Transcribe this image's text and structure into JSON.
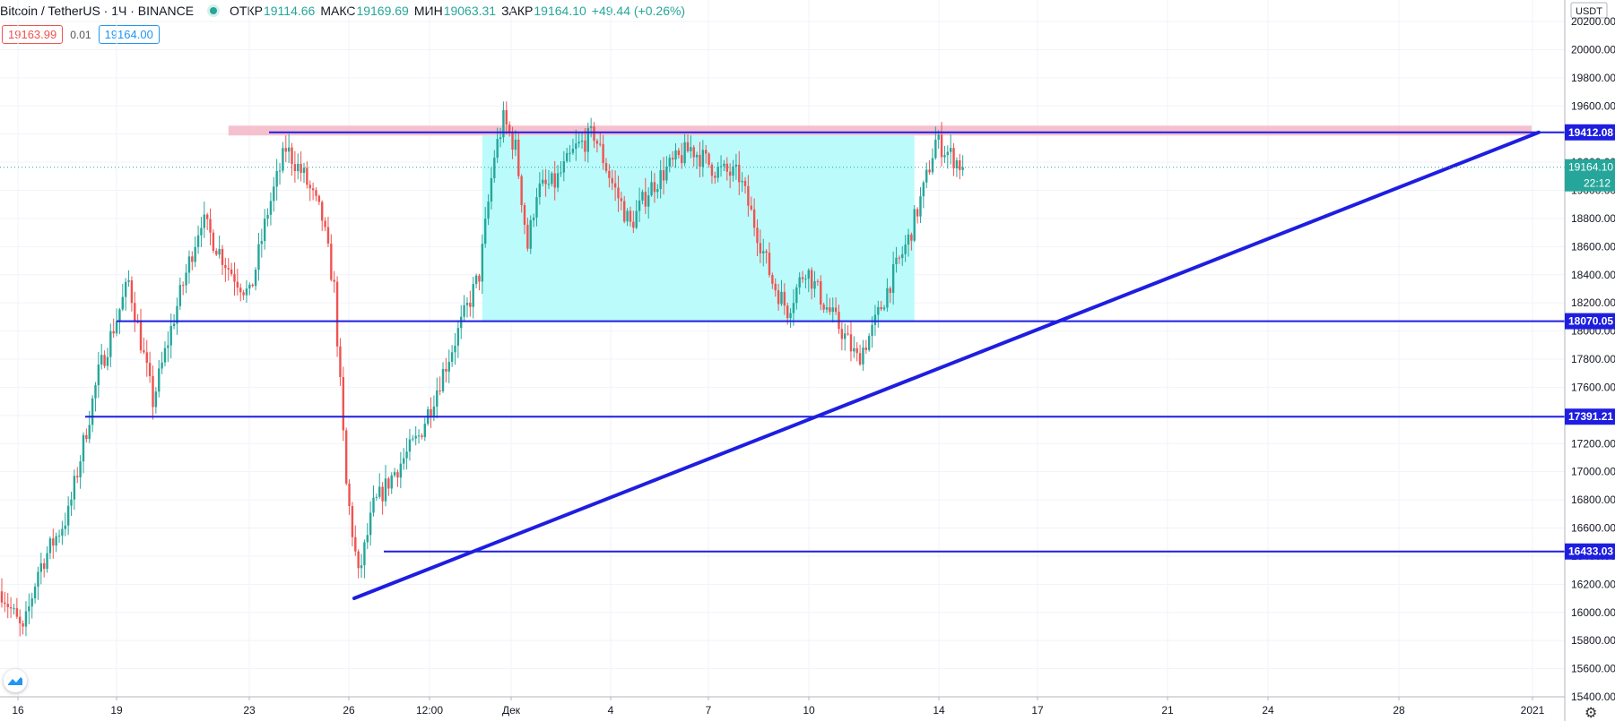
{
  "header": {
    "symbol": "Bitcoin / TetherUS · 1Ч · BINANCE",
    "open_label": "ОТКР",
    "open_value": "19114.66",
    "high_label": "МАКС",
    "high_value": "19169.69",
    "low_label": "МИН",
    "low_value": "19063.31",
    "close_label": "ЗАКР",
    "close_value": "19164.10",
    "change": "+49.44 (+0.26%)"
  },
  "quote": {
    "bid": "19163.99",
    "spread": "0.01",
    "ask": "19164.00"
  },
  "currency_label": "USDT",
  "colors": {
    "up": "#26a69a",
    "down": "#ef5350",
    "line": "#1e1ee0",
    "zone": "#b5fbfb",
    "resistance": "#f4b6c6"
  },
  "chart_data": {
    "type": "candlestick",
    "pair": "BTC/USDT",
    "timeframe": "1Ч",
    "ylim": [
      15400,
      20200
    ],
    "y_ticks": [
      20200,
      20000,
      19800,
      19600,
      19400,
      19200,
      19000,
      18800,
      18600,
      18400,
      18200,
      18000,
      17800,
      17600,
      17400,
      17200,
      17000,
      16800,
      16600,
      16400,
      16200,
      16000,
      15800,
      15600,
      15400
    ],
    "x_ticks": [
      "16",
      "19",
      "23",
      "26",
      "12:00",
      "Дек",
      "4",
      "7",
      "10",
      "14",
      "17",
      "21",
      "24",
      "28",
      "2021"
    ],
    "current_price": {
      "value": "19164.10",
      "countdown": "22:12"
    },
    "horizontal_levels": [
      {
        "value": 19412.08,
        "label": "19412.08"
      },
      {
        "value": 18070.05,
        "label": "18070.05"
      },
      {
        "value": 17391.21,
        "label": "17391.21"
      },
      {
        "value": 16433.03,
        "label": "16433.03"
      }
    ],
    "range_zone": {
      "top": 19390,
      "bottom": 18070,
      "from": "Дек (-1)",
      "to": "17 (+1)"
    },
    "resistance_zone": {
      "top": 19460,
      "bottom": 19390
    },
    "trendline": {
      "start_value": 16100,
      "end_value": 19412.08
    },
    "price_path": [
      [
        0,
        16150
      ],
      [
        7,
        15850
      ],
      [
        12,
        16300
      ],
      [
        22,
        16700
      ],
      [
        32,
        17700
      ],
      [
        42,
        18350
      ],
      [
        50,
        17500
      ],
      [
        57,
        18100
      ],
      [
        66,
        18800
      ],
      [
        75,
        18450
      ],
      [
        82,
        18250
      ],
      [
        88,
        18850
      ],
      [
        94,
        19300
      ],
      [
        100,
        19100
      ],
      [
        106,
        18800
      ],
      [
        110,
        18300
      ],
      [
        114,
        16900
      ],
      [
        118,
        16250
      ],
      [
        123,
        16750
      ],
      [
        130,
        17000
      ],
      [
        138,
        17250
      ],
      [
        145,
        17650
      ],
      [
        152,
        18050
      ],
      [
        158,
        18400
      ],
      [
        163,
        19250
      ],
      [
        166,
        19500
      ],
      [
        170,
        19300
      ],
      [
        174,
        18600
      ],
      [
        177,
        19000
      ],
      [
        183,
        19050
      ],
      [
        190,
        19300
      ],
      [
        196,
        19400
      ],
      [
        202,
        19050
      ],
      [
        208,
        18750
      ],
      [
        214,
        19000
      ],
      [
        220,
        19150
      ],
      [
        228,
        19300
      ],
      [
        236,
        19150
      ],
      [
        244,
        19100
      ],
      [
        250,
        18700
      ],
      [
        255,
        18350
      ],
      [
        260,
        18150
      ],
      [
        266,
        18450
      ],
      [
        272,
        18200
      ],
      [
        278,
        18000
      ],
      [
        283,
        17800
      ],
      [
        288,
        18000
      ],
      [
        294,
        18350
      ],
      [
        300,
        18650
      ],
      [
        305,
        19000
      ],
      [
        309,
        19350
      ],
      [
        314,
        19250
      ],
      [
        318,
        19164
      ]
    ]
  }
}
